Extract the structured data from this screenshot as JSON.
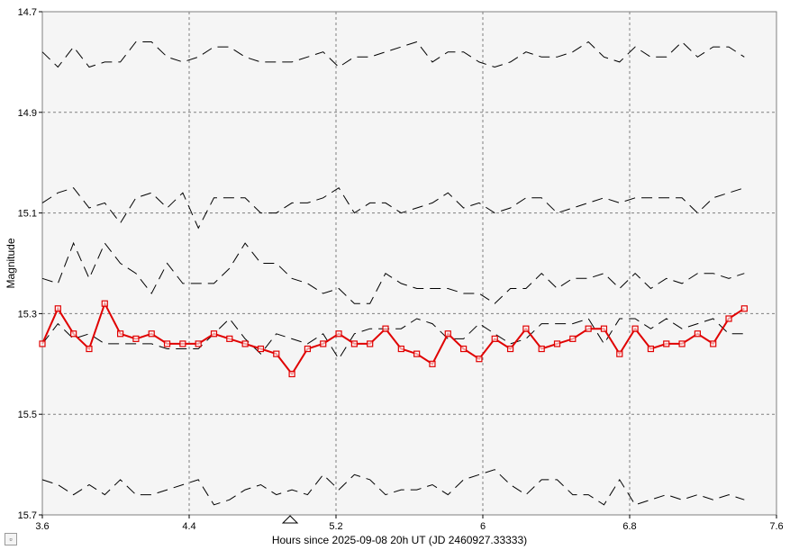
{
  "chart_data": {
    "type": "line",
    "title": "",
    "xlabel": "Hours since 2025-09-08 20h UT (JD 2460927.33333)",
    "ylabel": "Magnitude",
    "xlim": [
      3.6,
      7.6
    ],
    "ylim": [
      14.7,
      15.7
    ],
    "y_inverted": true,
    "x_ticks": [
      3.6,
      4.4,
      5.2,
      6,
      6.8,
      7.6
    ],
    "y_ticks": [
      14.7,
      14.9,
      15.1,
      15.3,
      15.5,
      15.7
    ],
    "x_tick_labels": [
      "3.6",
      "4.4",
      "5.2",
      "6",
      "6.8",
      "7.6"
    ],
    "y_tick_labels": [
      "14.7",
      "14.9",
      "15.1",
      "15.3",
      "15.5",
      "15.7"
    ],
    "grid": true,
    "marker_x": 4.95,
    "colors": {
      "target": "#e00000",
      "comparison": "#000000",
      "plot_bg": "#f5f5f5"
    },
    "x": [
      3.6,
      3.685,
      3.77,
      3.855,
      3.94,
      4.025,
      4.11,
      4.195,
      4.28,
      4.365,
      4.45,
      4.535,
      4.62,
      4.705,
      4.79,
      4.875,
      4.96,
      5.045,
      5.13,
      5.215,
      5.3,
      5.385,
      5.47,
      5.555,
      5.64,
      5.725,
      5.81,
      5.895,
      5.98,
      6.065,
      6.15,
      6.235,
      6.32,
      6.405,
      6.49,
      6.575,
      6.66,
      6.745,
      6.83,
      6.915,
      7.0,
      7.085,
      7.17,
      7.255,
      7.34,
      7.425
    ],
    "series": [
      {
        "values": [
          14.78,
          14.81,
          14.77,
          14.81,
          14.8,
          14.8,
          14.76,
          14.76,
          14.79,
          14.8,
          14.79,
          14.77,
          14.77,
          14.79,
          14.8,
          14.8,
          14.8,
          14.79,
          14.78,
          14.81,
          14.79,
          14.79,
          14.78,
          14.77,
          14.76,
          14.8,
          14.78,
          14.78,
          14.8,
          14.81,
          14.8,
          14.78,
          14.79,
          14.79,
          14.78,
          14.76,
          14.79,
          14.8,
          14.77,
          14.79,
          14.79,
          14.76,
          14.79,
          14.77,
          14.77,
          14.79
        ]
      },
      {
        "values": [
          15.08,
          15.06,
          15.05,
          15.09,
          15.08,
          15.12,
          15.07,
          15.06,
          15.09,
          15.06,
          15.13,
          15.07,
          15.07,
          15.07,
          15.1,
          15.1,
          15.08,
          15.08,
          15.07,
          15.05,
          15.1,
          15.08,
          15.08,
          15.1,
          15.09,
          15.08,
          15.06,
          15.09,
          15.08,
          15.1,
          15.09,
          15.07,
          15.07,
          15.1,
          15.09,
          15.08,
          15.07,
          15.08,
          15.07,
          15.07,
          15.07,
          15.07,
          15.1,
          15.07,
          15.06,
          15.05
        ]
      },
      {
        "values": [
          15.23,
          15.24,
          15.16,
          15.23,
          15.16,
          15.2,
          15.22,
          15.26,
          15.2,
          15.24,
          15.24,
          15.24,
          15.21,
          15.16,
          15.2,
          15.2,
          15.23,
          15.24,
          15.26,
          15.25,
          15.28,
          15.28,
          15.22,
          15.24,
          15.25,
          15.25,
          15.25,
          15.26,
          15.26,
          15.28,
          15.25,
          15.25,
          15.22,
          15.25,
          15.23,
          15.23,
          15.22,
          15.25,
          15.22,
          15.25,
          15.23,
          15.24,
          15.22,
          15.22,
          15.23,
          15.22
        ]
      },
      {
        "values": [
          15.36,
          15.32,
          15.35,
          15.34,
          15.36,
          15.36,
          15.36,
          15.36,
          15.37,
          15.37,
          15.37,
          15.34,
          15.31,
          15.35,
          15.38,
          15.34,
          15.35,
          15.36,
          15.34,
          15.39,
          15.34,
          15.33,
          15.33,
          15.33,
          15.31,
          15.32,
          15.35,
          15.35,
          15.32,
          15.34,
          15.36,
          15.35,
          15.32,
          15.32,
          15.32,
          15.31,
          15.36,
          15.31,
          15.31,
          15.33,
          15.31,
          15.33,
          15.32,
          15.31,
          15.34,
          15.34
        ]
      },
      {
        "values": [
          15.63,
          15.64,
          15.66,
          15.64,
          15.66,
          15.63,
          15.66,
          15.66,
          15.65,
          15.64,
          15.63,
          15.68,
          15.67,
          15.65,
          15.64,
          15.66,
          15.65,
          15.66,
          15.62,
          15.65,
          15.62,
          15.63,
          15.66,
          15.65,
          15.65,
          15.64,
          15.66,
          15.63,
          15.62,
          15.61,
          15.64,
          15.66,
          15.63,
          15.63,
          15.66,
          15.66,
          15.68,
          15.63,
          15.68,
          15.67,
          15.66,
          15.67,
          15.66,
          15.67,
          15.66,
          15.67
        ]
      },
      {
        "values": [
          15.36,
          15.29,
          15.34,
          15.37,
          15.28,
          15.34,
          15.35,
          15.34,
          15.36,
          15.36,
          15.36,
          15.34,
          15.35,
          15.36,
          15.37,
          15.38,
          15.42,
          15.37,
          15.36,
          15.34,
          15.36,
          15.36,
          15.33,
          15.37,
          15.38,
          15.4,
          15.34,
          15.37,
          15.39,
          15.35,
          15.37,
          15.33,
          15.37,
          15.36,
          15.35,
          15.33,
          15.33,
          15.38,
          15.33,
          15.37,
          15.36,
          15.36,
          15.34,
          15.36,
          15.31,
          15.29
        ]
      }
    ]
  }
}
